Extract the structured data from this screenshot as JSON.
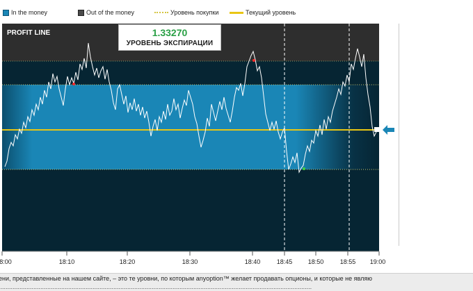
{
  "legend": {
    "in_the_money": "In the money",
    "out_of_the_money": "Out of the money",
    "buy_level": "Уровень покупки",
    "current_level": "Текущий уровень"
  },
  "chart": {
    "profit_line_label": "PROFIT LINE",
    "expiry_value": "1.33270",
    "expiry_label": "УРОВЕНЬ ЭКСПИРАЦИИ",
    "x_ticks": [
      "8:00",
      "18:10",
      "18:20",
      "18:30",
      "18:40",
      "18:45",
      "18:50",
      "18:55",
      "19:00"
    ],
    "colors": {
      "out_of_money_top": "#2e2e2e",
      "in_money_band": "#1a86b6",
      "out_of_money_bottom": "#062533",
      "price_line": "#ffffff",
      "current_level_line": "#e9c614",
      "arrow": "#1a86b6"
    },
    "icons": {
      "current_arrow": "left-arrow-icon"
    }
  },
  "ticker": {
    "text": "ени, представленные на нашем сайте, – это те уровни, по которым anyoption™ желает продавать опционы, и которые не являю",
    "second_line": "...................................................................................................................................................................................."
  }
}
